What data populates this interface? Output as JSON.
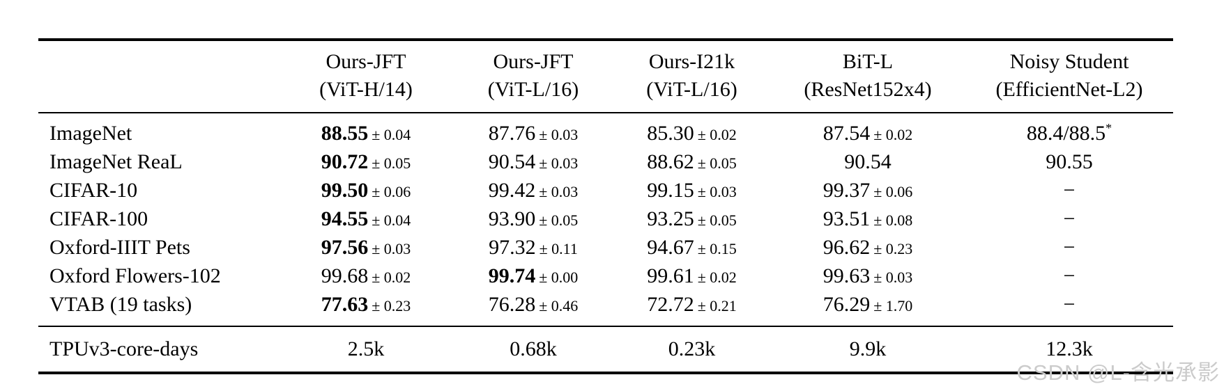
{
  "colors": {
    "background": "#ffffff",
    "text": "#000000",
    "rule": "#000000",
    "watermark": "#cbcbcb"
  },
  "watermark": "CSDN @L-含光承影",
  "table": {
    "header": {
      "columns": [
        {
          "line1": "Ours-JFT",
          "line2": "(ViT-H/14)"
        },
        {
          "line1": "Ours-JFT",
          "line2": "(ViT-L/16)"
        },
        {
          "line1": "Ours-I21k",
          "line2": "(ViT-L/16)"
        },
        {
          "line1": "BiT-L",
          "line2": "(ResNet152x4)"
        },
        {
          "line1": "Noisy Student",
          "line2": "(EfficientNet-L2)"
        }
      ]
    },
    "rows": [
      {
        "label": "ImageNet",
        "cells": [
          {
            "value": "88.55",
            "err": "± 0.04",
            "bold": true
          },
          {
            "value": "87.76",
            "err": "± 0.03"
          },
          {
            "value": "85.30",
            "err": "± 0.02"
          },
          {
            "value": "87.54",
            "err": "± 0.02"
          },
          {
            "value": "88.4/88.5",
            "sup": "*"
          }
        ]
      },
      {
        "label": "ImageNet ReaL",
        "cells": [
          {
            "value": "90.72",
            "err": "± 0.05",
            "bold": true
          },
          {
            "value": "90.54",
            "err": "± 0.03"
          },
          {
            "value": "88.62",
            "err": "± 0.05"
          },
          {
            "value": "90.54"
          },
          {
            "value": "90.55"
          }
        ]
      },
      {
        "label": "CIFAR-10",
        "cells": [
          {
            "value": "99.50",
            "err": "± 0.06",
            "bold": true
          },
          {
            "value": "99.42",
            "err": "± 0.03"
          },
          {
            "value": "99.15",
            "err": "± 0.03"
          },
          {
            "value": "99.37",
            "err": "± 0.06"
          },
          {
            "value": "−"
          }
        ]
      },
      {
        "label": "CIFAR-100",
        "cells": [
          {
            "value": "94.55",
            "err": "± 0.04",
            "bold": true
          },
          {
            "value": "93.90",
            "err": "± 0.05"
          },
          {
            "value": "93.25",
            "err": "± 0.05"
          },
          {
            "value": "93.51",
            "err": "± 0.08"
          },
          {
            "value": "−"
          }
        ]
      },
      {
        "label": "Oxford-IIIT Pets",
        "cells": [
          {
            "value": "97.56",
            "err": "± 0.03",
            "bold": true
          },
          {
            "value": "97.32",
            "err": "± 0.11"
          },
          {
            "value": "94.67",
            "err": "± 0.15"
          },
          {
            "value": "96.62",
            "err": "± 0.23"
          },
          {
            "value": "−"
          }
        ]
      },
      {
        "label": "Oxford Flowers-102",
        "cells": [
          {
            "value": "99.68",
            "err": "± 0.02"
          },
          {
            "value": "99.74",
            "err": "± 0.00",
            "bold": true
          },
          {
            "value": "99.61",
            "err": "± 0.02"
          },
          {
            "value": "99.63",
            "err": "± 0.03"
          },
          {
            "value": "−"
          }
        ]
      },
      {
        "label": "VTAB (19 tasks)",
        "cells": [
          {
            "value": "77.63",
            "err": "± 0.23",
            "bold": true
          },
          {
            "value": "76.28",
            "err": "± 0.46"
          },
          {
            "value": "72.72",
            "err": "± 0.21"
          },
          {
            "value": "76.29",
            "err": "± 1.70"
          },
          {
            "value": "−"
          }
        ]
      }
    ],
    "footer": {
      "label": "TPUv3-core-days",
      "values": [
        "2.5k",
        "0.68k",
        "0.23k",
        "9.9k",
        "12.3k"
      ]
    }
  }
}
